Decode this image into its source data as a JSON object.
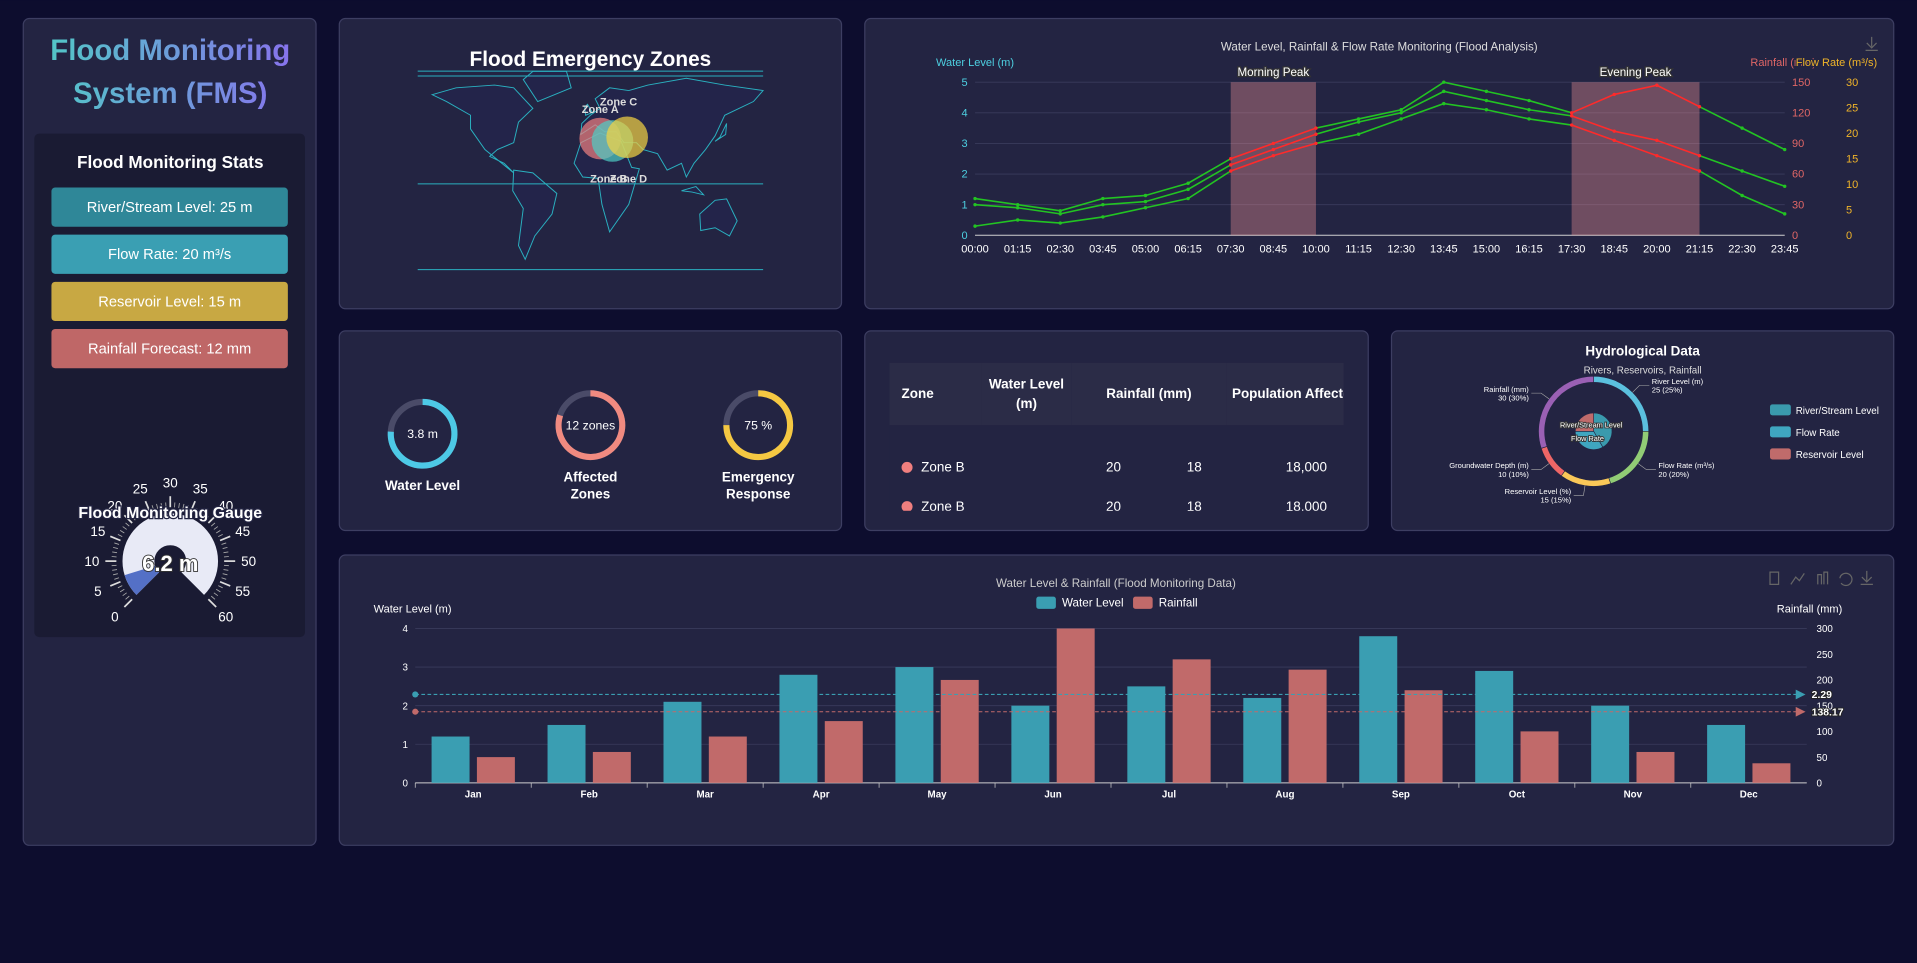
{
  "sidebar": {
    "title": "Flood Monitoring System (FMS)",
    "stats_title": "Flood Monitoring Stats",
    "stats": [
      {
        "label": "River/Stream Level: 25 m",
        "color": "#2f8798"
      },
      {
        "label": "Flow Rate: 20 m³/s",
        "color": "#3a9fb3"
      },
      {
        "label": "Reservoir Level: 15 m",
        "color": "#c8a843"
      },
      {
        "label": "Rainfall Forecast: 12 mm",
        "color": "#bf6767"
      }
    ],
    "gauge": {
      "title": "Flood Monitoring Gauge",
      "value": 6.2,
      "value_label": "6.2 m",
      "range": [
        0,
        60
      ],
      "ticks": [
        0,
        5,
        10,
        15,
        20,
        25,
        30,
        35,
        40,
        45,
        50,
        55,
        60
      ],
      "color": "#5470c6"
    }
  },
  "map": {
    "title": "Flood Emergency Zones",
    "zones": [
      {
        "label": "Zone A",
        "color": "#f08080"
      },
      {
        "label": "Zone B",
        "color": "#4ecdc4"
      },
      {
        "label": "Zone C",
        "color": "#f5d442"
      },
      {
        "label": "Zone D"
      }
    ]
  },
  "kpis": [
    {
      "value": 3.8,
      "value_label": "3.8 m",
      "range": [
        0,
        5
      ],
      "label": "Water Level",
      "color": "#4dc9e6"
    },
    {
      "value": 12,
      "value_label": "12 zones",
      "range": [
        0,
        15
      ],
      "label": "Affected Zones",
      "color": "#f08a80"
    },
    {
      "value": 75,
      "value_label": "75 %",
      "range": [
        0,
        100
      ],
      "label": "Emergency Response",
      "color": "#f5c842"
    }
  ],
  "table": {
    "header": [
      "Zone",
      "Water Level (m)",
      "Rainfall (mm)",
      "Population Affected"
    ],
    "rows": [
      {
        "color": "#f07f7f",
        "cells": [
          "Zone B",
          20,
          18,
          "18,000"
        ]
      },
      {
        "color": "#f07f7f",
        "cells": [
          "Zone B",
          20,
          18,
          "18,000"
        ]
      }
    ]
  },
  "chart_data": [
    {
      "type": "line",
      "title": "Water Level, Rainfall & Flow Rate Monitoring (Flood Analysis)",
      "ylabel": "Water Level (m)",
      "y2label": "Rainfall (mm)",
      "y3label": "Flow Rate (m³/s)",
      "categories": [
        "00:00",
        "01:15",
        "02:30",
        "03:45",
        "05:00",
        "06:15",
        "07:30",
        "08:45",
        "10:00",
        "11:15",
        "12:30",
        "13:45",
        "15:00",
        "16:15",
        "17:30",
        "18:45",
        "20:00",
        "21:15",
        "22:30",
        "23:45"
      ],
      "series": [
        {
          "color": "#22c422",
          "values": [
            1.2,
            1.0,
            0.8,
            1.2,
            1.3,
            1.7,
            2.5,
            3.0,
            3.5,
            3.8,
            4.1,
            5.0,
            4.7,
            4.4,
            4.0,
            4.6,
            4.9,
            4.2,
            3.5,
            2.8
          ]
        },
        {
          "color": "#22c422",
          "values": [
            1.0,
            0.9,
            0.7,
            1.0,
            1.1,
            1.5,
            2.3,
            2.8,
            3.3,
            3.7,
            4.0,
            4.7,
            4.4,
            4.1,
            3.9,
            3.4,
            3.1,
            2.6,
            2.1,
            1.6
          ]
        },
        {
          "color": "#22c422",
          "values": [
            0.3,
            0.5,
            0.4,
            0.6,
            0.9,
            1.2,
            2.1,
            2.6,
            3.0,
            3.3,
            3.8,
            4.3,
            4.1,
            3.8,
            3.6,
            3.1,
            2.6,
            2.1,
            1.3,
            0.7
          ]
        }
      ],
      "peak_color": "#ff2a2a",
      "mark_areas": [
        {
          "label": "Morning Peak",
          "from": "07:30",
          "to": "10:00"
        },
        {
          "label": "Evening Peak",
          "from": "17:30",
          "to": "21:15"
        }
      ],
      "ylim": [
        0,
        5
      ],
      "yticks": [
        0,
        1,
        2,
        3,
        4,
        5
      ],
      "y2lim": [
        0,
        150
      ],
      "y2ticks": [
        0,
        30,
        60,
        90,
        120,
        150
      ],
      "y3lim": [
        0,
        30
      ],
      "y3ticks": [
        0,
        5,
        10,
        15,
        20,
        25,
        30
      ],
      "grid": true
    },
    {
      "type": "pie",
      "title": "Hydrological Data",
      "subtitle": "Rivers, Reservoirs, Rainfall",
      "outer": {
        "labels": [
          "River Level (m)",
          "Flow Rate (m³/s)",
          "Reservoir Level (%)",
          "Groundwater Depth (m)",
          "Rainfall (mm)"
        ],
        "values": [
          25,
          20,
          15,
          10,
          30
        ],
        "value_labels": [
          "25 (25%)",
          "20 (20%)",
          "15 (15%)",
          "10 (10%)",
          "30 (30%)"
        ],
        "colors": [
          "#5bc0de",
          "#91cc75",
          "#fac858",
          "#ee6666",
          "#9a60b4"
        ]
      },
      "inner": {
        "labels": [
          "River/Stream Level",
          "Flow Rate",
          "Reservoir Level"
        ],
        "values": [
          25,
          20,
          15
        ],
        "colors": [
          "#3a9aad",
          "#3fa6c0",
          "#c06b6b"
        ]
      }
    },
    {
      "type": "bar",
      "title": "Water Level & Rainfall (Flood Monitoring Data)",
      "ylabel": "Water Level (m)",
      "y2label": "Rainfall (mm)",
      "categories": [
        "Jan",
        "Feb",
        "Mar",
        "Apr",
        "May",
        "Jun",
        "Jul",
        "Aug",
        "Sep",
        "Oct",
        "Nov",
        "Dec"
      ],
      "series": [
        {
          "name": "Water Level",
          "color": "#3a9eb2",
          "values": [
            1.2,
            1.5,
            2.1,
            2.8,
            3.0,
            2.0,
            2.5,
            2.2,
            3.8,
            2.9,
            2.0,
            1.5
          ]
        },
        {
          "name": "Rainfall",
          "color": "#c16a6a",
          "axis": "y2",
          "values": [
            50,
            60,
            90,
            120,
            200,
            300,
            240,
            220,
            180,
            100,
            60,
            38
          ]
        }
      ],
      "mark_lines": [
        {
          "value": 2.29,
          "axis": "y"
        },
        {
          "value": 138.17,
          "axis": "y2"
        }
      ],
      "ylim": [
        0,
        4
      ],
      "yticks": [
        0,
        1,
        2,
        3,
        4
      ],
      "y2lim": [
        0,
        300
      ],
      "y2ticks": [
        0,
        50,
        100,
        150,
        200,
        250,
        300
      ],
      "grid": true
    }
  ]
}
